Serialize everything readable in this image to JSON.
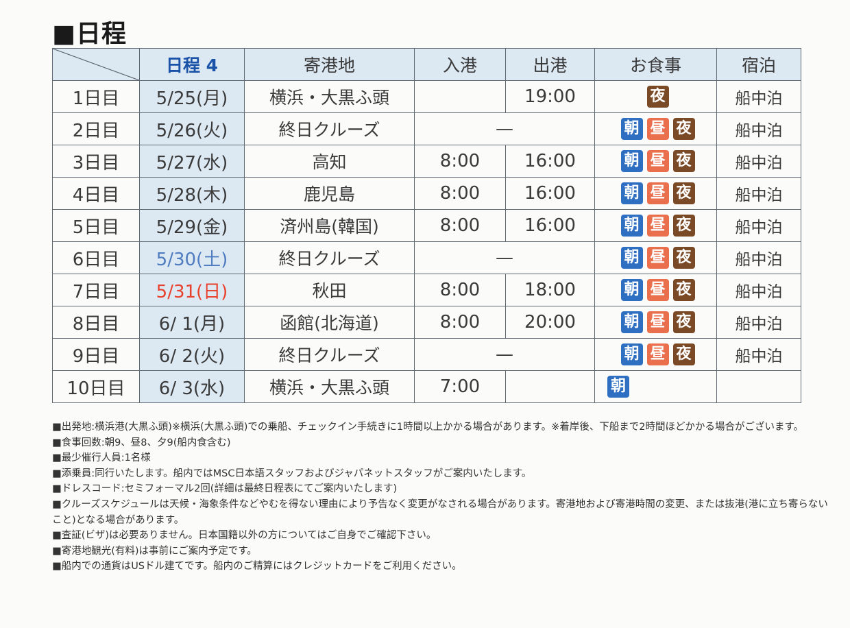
{
  "heading": "■日程",
  "headers": {
    "date": "日程 4",
    "port": "寄港地",
    "arrive": "入港",
    "depart": "出港",
    "meals": "お食事",
    "stay": "宿泊"
  },
  "rows": [
    {
      "day": "1日目",
      "date": "5/25(月)",
      "port": "横浜・大黒ふ頭",
      "arrive": "",
      "depart": "19:00",
      "meals": [
        "夜"
      ],
      "stay": "船中泊"
    },
    {
      "day": "2日目",
      "date": "5/26(火)",
      "port": "終日クルーズ",
      "span": "—",
      "meals": [
        "朝",
        "昼",
        "夜"
      ],
      "stay": "船中泊"
    },
    {
      "day": "3日目",
      "date": "5/27(水)",
      "port": "高知",
      "arrive": "8:00",
      "depart": "16:00",
      "meals": [
        "朝",
        "昼",
        "夜"
      ],
      "stay": "船中泊"
    },
    {
      "day": "4日目",
      "date": "5/28(木)",
      "port": "鹿児島",
      "arrive": "8:00",
      "depart": "16:00",
      "meals": [
        "朝",
        "昼",
        "夜"
      ],
      "stay": "船中泊"
    },
    {
      "day": "5日目",
      "date": "5/29(金)",
      "port": "済州島(韓国)",
      "arrive": "8:00",
      "depart": "16:00",
      "meals": [
        "朝",
        "昼",
        "夜"
      ],
      "stay": "船中泊"
    },
    {
      "day": "6日目",
      "date": "5/30(土)",
      "port": "終日クルーズ",
      "span": "—",
      "meals": [
        "朝",
        "昼",
        "夜"
      ],
      "stay": "船中泊",
      "date_style": "sat"
    },
    {
      "day": "7日目",
      "date": "5/31(日)",
      "port": "秋田",
      "arrive": "8:00",
      "depart": "18:00",
      "meals": [
        "朝",
        "昼",
        "夜"
      ],
      "stay": "船中泊",
      "date_style": "sun"
    },
    {
      "day": "8日目",
      "date": "6/ 1(月)",
      "port": "函館(北海道)",
      "arrive": "8:00",
      "depart": "20:00",
      "meals": [
        "朝",
        "昼",
        "夜"
      ],
      "stay": "船中泊"
    },
    {
      "day": "9日目",
      "date": "6/ 2(火)",
      "port": "終日クルーズ",
      "span": "—",
      "meals": [
        "朝",
        "昼",
        "夜"
      ],
      "stay": "船中泊"
    },
    {
      "day": "10日目",
      "date": "6/ 3(水)",
      "port": "横浜・大黒ふ頭",
      "arrive": "7:00",
      "depart": "",
      "meals": [
        "朝"
      ],
      "stay": ""
    }
  ],
  "meal_colors": {
    "朝": "#2f6fc1",
    "昼": "#ea6f4d",
    "夜": "#7a4a26"
  },
  "notes": [
    "■出発地:横浜港(大黒ふ頭)※横浜(大黒ふ頭)での乗船、チェックイン手続きに1時間以上かかる場合があります。※着岸後、下船まで2時間ほどかかる場合がございます。",
    "■食事回数:朝9、昼8、夕9(船内食含む)",
    "■最少催行人員:1名様",
    "■添乗員:同行いたします。船内ではMSC日本語スタッフおよびジャパネットスタッフがご案内いたします。",
    "■ドレスコード:セミフォーマル2回(詳細は最終日程表にてご案内いたします)",
    "■クルーズスケジュールは天候・海象条件などやむを得ない理由により予告なく変更がなされる場合があります。寄港地および寄港時間の変更、または抜港(港に立ち寄らないこと)となる場合があります。",
    "■査証(ビザ)は必要ありません。日本国籍以外の方についてはご自身でご確認下さい。",
    "■寄港地観光(有料)は事前にご案内予定です。",
    "■船内での通貨はUSドル建てです。船内のご精算にはクレジットカードをご利用ください。"
  ]
}
